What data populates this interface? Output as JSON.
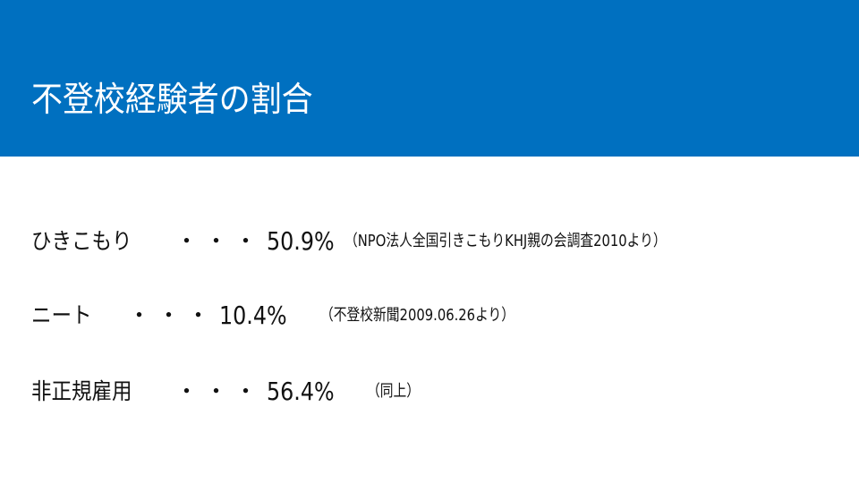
{
  "slide": {
    "title": "不登校経験者の割合",
    "header_color": "#0070C0",
    "rows": [
      {
        "label": "ひきこもり",
        "separator": "・・・",
        "value": "50.9%",
        "source": "（NPO法人全国引きこもりKHJ親の会調査2010より）"
      },
      {
        "label": "ニート",
        "separator": "・・・",
        "value": "10.4%",
        "source": "（不登校新聞2009.06.26より）"
      },
      {
        "label": "非正規雇用",
        "separator": "・・・",
        "value": "56.4%",
        "source": "（同上）"
      }
    ]
  }
}
